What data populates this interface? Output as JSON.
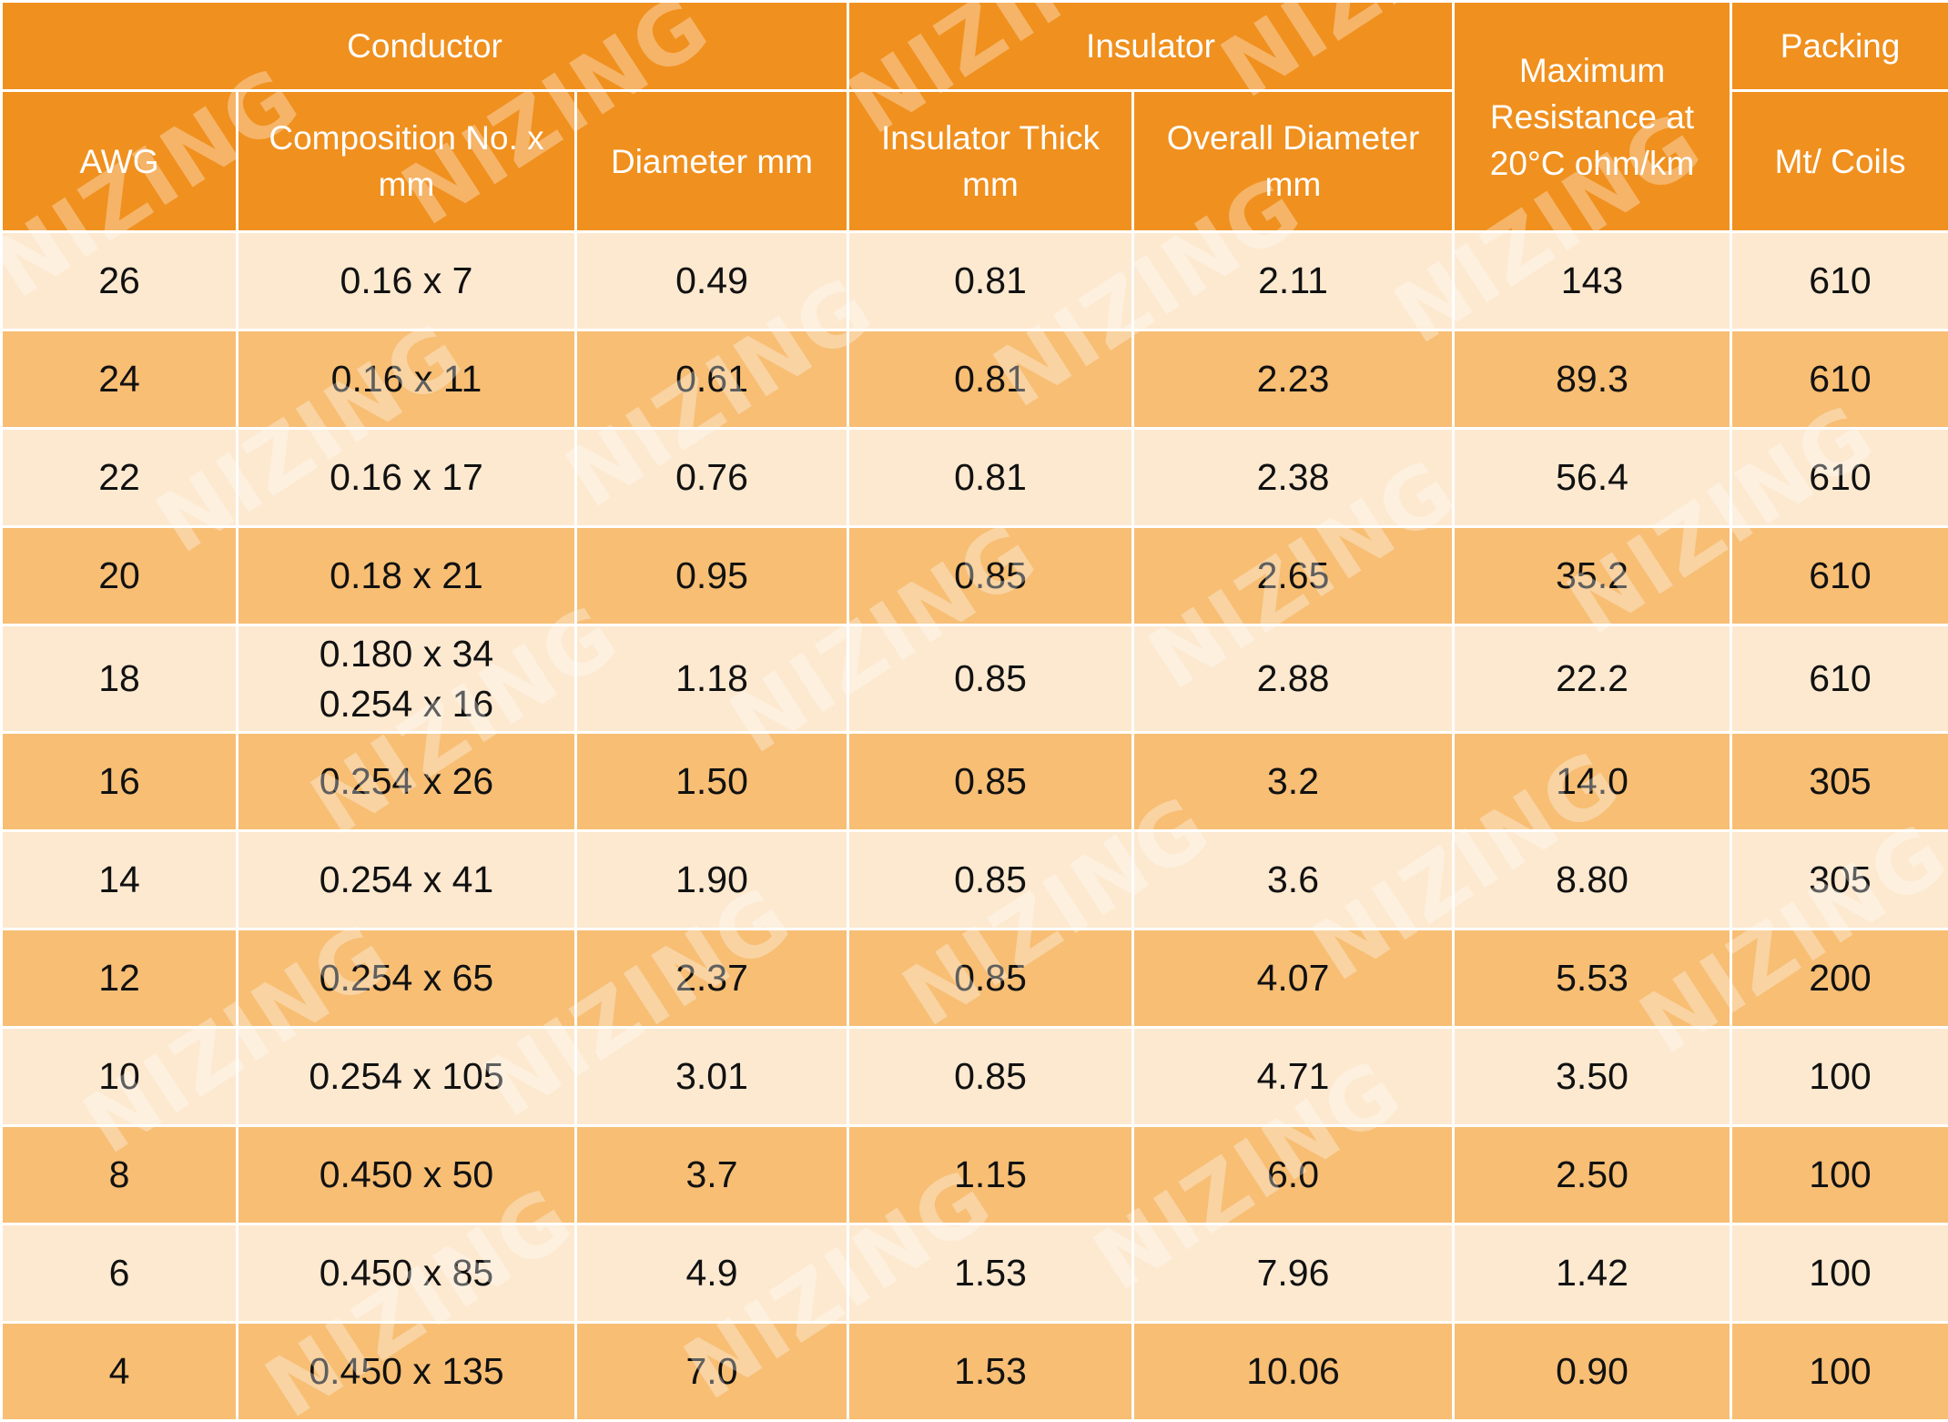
{
  "header": {
    "groups": {
      "conductor": "Conductor",
      "insulator": "Insulator",
      "max_resistance": "Maximum Resistance at 20°C ohm/km",
      "packing": "Packing"
    },
    "columns": {
      "awg": "AWG",
      "composition": "Composition No. x mm",
      "diameter": "Diameter mm",
      "insulator_thick": "Insulator Thick mm",
      "overall_diameter": "Overall Diameter mm",
      "mt_coils": "Mt/ Coils"
    }
  },
  "rows": [
    {
      "awg": "26",
      "composition": "0.16 x 7",
      "diameter": "0.49",
      "insulator_thick": "0.81",
      "overall_diameter": "2.11",
      "resistance": "143",
      "packing": "610"
    },
    {
      "awg": "24",
      "composition": "0.16 x 11",
      "diameter": "0.61",
      "insulator_thick": "0.81",
      "overall_diameter": "2.23",
      "resistance": "89.3",
      "packing": "610"
    },
    {
      "awg": "22",
      "composition": "0.16 x 17",
      "diameter": "0.76",
      "insulator_thick": "0.81",
      "overall_diameter": "2.38",
      "resistance": "56.4",
      "packing": "610"
    },
    {
      "awg": "20",
      "composition": "0.18 x 21",
      "diameter": "0.95",
      "insulator_thick": "0.85",
      "overall_diameter": "2.65",
      "resistance": "35.2",
      "packing": "610"
    },
    {
      "awg": "18",
      "composition": "0.180 x 34",
      "composition_2": "0.254 x 16",
      "diameter": "1.18",
      "insulator_thick": "0.85",
      "overall_diameter": "2.88",
      "resistance": "22.2",
      "packing": "610"
    },
    {
      "awg": "16",
      "composition": "0.254 x 26",
      "diameter": "1.50",
      "insulator_thick": "0.85",
      "overall_diameter": "3.2",
      "resistance": "14.0",
      "packing": "305"
    },
    {
      "awg": "14",
      "composition": "0.254 x 41",
      "diameter": "1.90",
      "insulator_thick": "0.85",
      "overall_diameter": "3.6",
      "resistance": "8.80",
      "packing": "305"
    },
    {
      "awg": "12",
      "composition": "0.254 x 65",
      "diameter": "2.37",
      "insulator_thick": "0.85",
      "overall_diameter": "4.07",
      "resistance": "5.53",
      "packing": "200"
    },
    {
      "awg": "10",
      "composition": "0.254 x 105",
      "diameter": "3.01",
      "insulator_thick": "0.85",
      "overall_diameter": "4.71",
      "resistance": "3.50",
      "packing": "100"
    },
    {
      "awg": "8",
      "composition": "0.450 x 50",
      "diameter": "3.7",
      "insulator_thick": "1.15",
      "overall_diameter": "6.0",
      "resistance": "2.50",
      "packing": "100"
    },
    {
      "awg": "6",
      "composition": "0.450 x 85",
      "diameter": "4.9",
      "insulator_thick": "1.53",
      "overall_diameter": "7.96",
      "resistance": "1.42",
      "packing": "100"
    },
    {
      "awg": "4",
      "composition": "0.450 x 135",
      "diameter": "7.0",
      "insulator_thick": "1.53",
      "overall_diameter": "10.06",
      "resistance": "0.90",
      "packing": "100"
    }
  ],
  "colors": {
    "header": "#f0901e",
    "row_light": "#fde9d0",
    "row_dark": "#f7be74",
    "grid": "#ffffff"
  },
  "watermark": {
    "text": "NIZING"
  }
}
